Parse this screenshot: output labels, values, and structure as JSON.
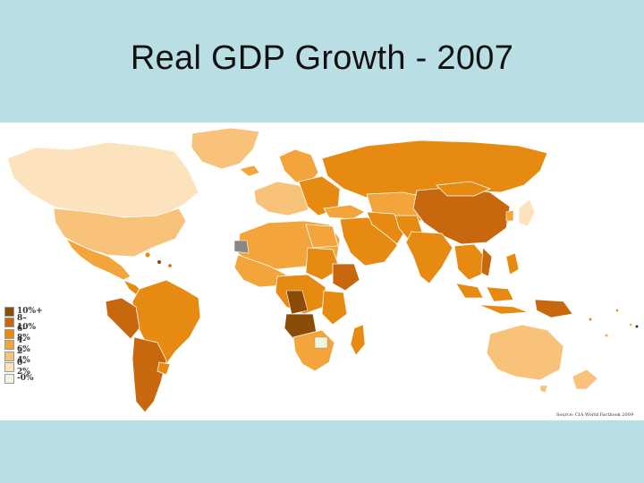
{
  "slide": {
    "title": "Real GDP Growth - 2007"
  },
  "map": {
    "source": "Source: CIA World Factbook 2009",
    "legend": [
      {
        "label": "10%+",
        "color": "#8a4c06"
      },
      {
        "label": "8–10%",
        "color": "#c8680e"
      },
      {
        "label": "6-8%",
        "color": "#e68a12"
      },
      {
        "label": "4-6%",
        "color": "#f3a43a"
      },
      {
        "label": "2-4%",
        "color": "#f8c27a"
      },
      {
        "label": "0-2%",
        "color": "#fde3bd"
      },
      {
        "label": "-0%",
        "color": "#eef6e0"
      }
    ]
  }
}
